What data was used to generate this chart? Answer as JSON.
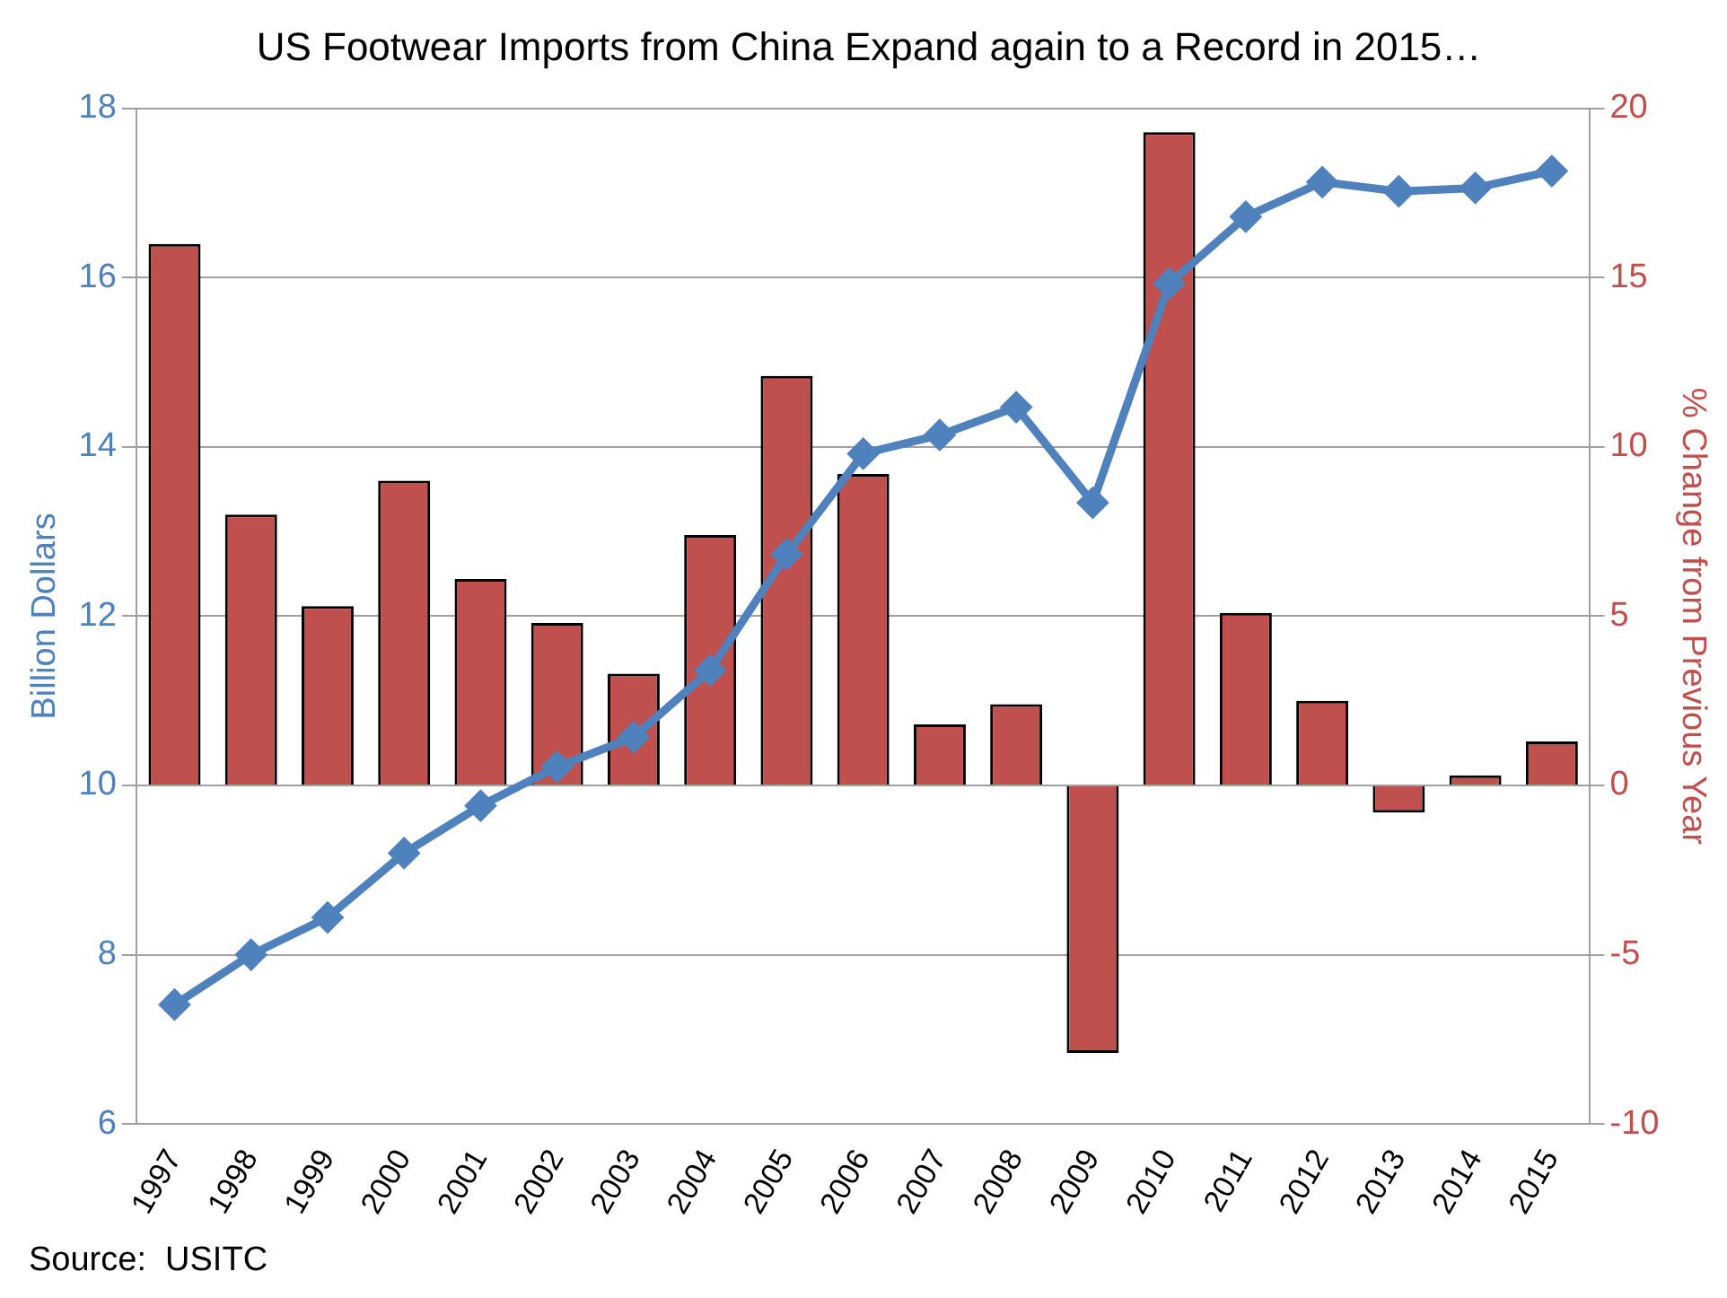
{
  "chart_data": {
    "type": "bar",
    "title": "US Footwear Imports from China Expand again to a Record in 2015…",
    "categories": [
      "1997",
      "1998",
      "1999",
      "2000",
      "2001",
      "2002",
      "2003",
      "2004",
      "2005",
      "2006",
      "2007",
      "2008",
      "2009",
      "2010",
      "2011",
      "2012",
      "2013",
      "2014",
      "2015"
    ],
    "series": [
      {
        "axis": "y2",
        "color": "#c0504d",
        "values": [
          16.0,
          8.0,
          5.3,
          9.0,
          6.1,
          4.8,
          3.3,
          7.4,
          12.1,
          9.2,
          1.8,
          2.4,
          -7.9,
          19.3,
          5.1,
          2.5,
          -0.8,
          0.3,
          1.3
        ]
      },
      {
        "type": "line",
        "axis": "y",
        "color": "#4f81bd",
        "values": [
          7.41,
          8.0,
          8.44,
          9.2,
          9.76,
          10.22,
          10.57,
          11.36,
          12.73,
          13.92,
          14.14,
          14.47,
          13.34,
          15.93,
          16.72,
          17.13,
          17.02,
          17.06,
          17.26
        ]
      }
    ],
    "ylabel": "Billion Dollars",
    "y2label": "% Change from Previous Year",
    "ylim": [
      6,
      18
    ],
    "yticks": [
      6,
      8,
      10,
      12,
      14,
      16,
      18
    ],
    "y2lim": [
      -10,
      20
    ],
    "y2ticks": [
      -10,
      -5,
      0,
      5,
      10,
      15,
      20
    ],
    "grid": "y",
    "marker": "diamond",
    "line_style": "solid",
    "annotations": [
      "Source:  USITC"
    ]
  }
}
